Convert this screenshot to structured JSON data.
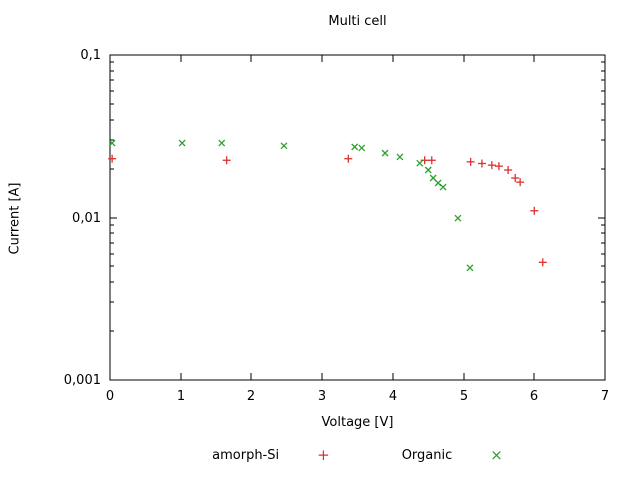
{
  "window": {
    "background": "#ffffff"
  },
  "chart_data": {
    "type": "scatter",
    "title": "Multi cell",
    "xlabel": "Voltage [V]",
    "ylabel": "Current [A]",
    "xlim": [
      0,
      7
    ],
    "ylim": [
      0.001,
      0.1
    ],
    "y_scale": "log",
    "grid": false,
    "legend_position": "below",
    "x_ticks": {
      "values": [
        0,
        1,
        2,
        3,
        4,
        5,
        6,
        7
      ],
      "labels": [
        "0",
        "1",
        "2",
        "3",
        "4",
        "5",
        "6",
        "7"
      ]
    },
    "y_ticks": {
      "values": [
        0.1,
        0.01,
        0.001
      ],
      "labels": [
        "0,1",
        "0,01",
        "0,001"
      ]
    },
    "series": [
      {
        "name": "amorph-Si",
        "marker": "plus",
        "marker_glyph": "+",
        "color": "#dd3030",
        "points": [
          [
            0.03,
            0.023
          ],
          [
            1.65,
            0.0225
          ],
          [
            3.37,
            0.023
          ],
          [
            4.45,
            0.0225
          ],
          [
            4.55,
            0.0225
          ],
          [
            5.1,
            0.022
          ],
          [
            5.26,
            0.0215
          ],
          [
            5.4,
            0.021
          ],
          [
            5.5,
            0.0207
          ],
          [
            5.63,
            0.0196
          ],
          [
            5.73,
            0.0175
          ],
          [
            5.8,
            0.0165
          ],
          [
            6.0,
            0.011
          ],
          [
            6.12,
            0.0053
          ]
        ]
      },
      {
        "name": "Organic",
        "marker": "cross",
        "marker_glyph": "×",
        "color": "#2ea02e",
        "points": [
          [
            0.03,
            0.0287
          ],
          [
            1.02,
            0.0287
          ],
          [
            1.58,
            0.0287
          ],
          [
            2.46,
            0.0276
          ],
          [
            3.46,
            0.0272
          ],
          [
            3.56,
            0.0268
          ],
          [
            3.89,
            0.0249
          ],
          [
            4.1,
            0.0236
          ],
          [
            4.38,
            0.0216
          ],
          [
            4.5,
            0.0196
          ],
          [
            4.57,
            0.0175
          ],
          [
            4.64,
            0.0163
          ],
          [
            4.71,
            0.0154
          ],
          [
            4.92,
            0.0099
          ],
          [
            5.09,
            0.0049
          ]
        ]
      }
    ]
  }
}
